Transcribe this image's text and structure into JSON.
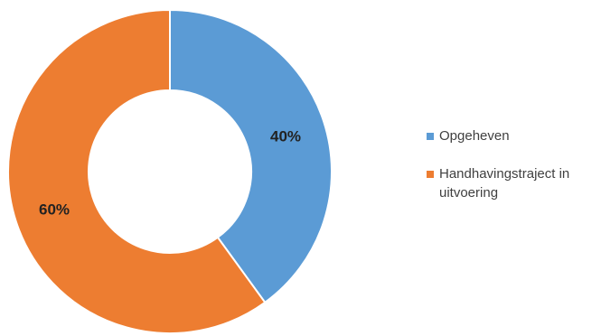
{
  "chart_data": {
    "type": "pie",
    "subtype": "donut",
    "title": "",
    "legend_position": "right",
    "series": [
      {
        "name": "Opgeheven",
        "value": 40,
        "label": "40%",
        "color": "#5b9bd5"
      },
      {
        "name": "Handhavingstraject in uitvoering",
        "value": 60,
        "label": "60%",
        "color": "#ed7d31"
      }
    ]
  }
}
